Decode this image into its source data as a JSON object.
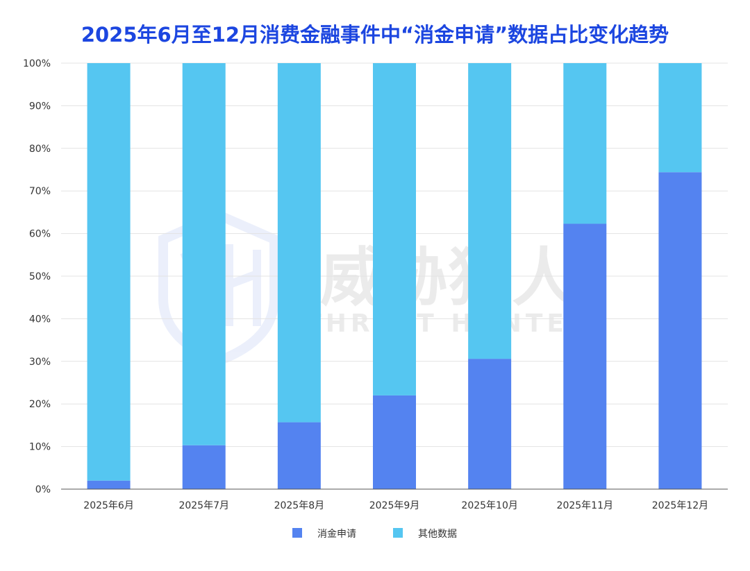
{
  "chart_data": {
    "type": "bar",
    "stacked": true,
    "percent": true,
    "title": "2025年6月至12月消费金融事件中“消金申请”数据占比变化趋势",
    "categories": [
      "2025年6月",
      "2025年7月",
      "2025年8月",
      "2025年9月",
      "2025年10月",
      "2025年11月",
      "2025年12月"
    ],
    "series": [
      {
        "name": "消金申请",
        "color": "#5483f0",
        "values": [
          2,
          10.3,
          15.7,
          22,
          30.6,
          62.3,
          74.4
        ]
      },
      {
        "name": "其他数据",
        "color": "#55c6f1",
        "values": [
          98,
          89.7,
          84.3,
          78,
          69.4,
          37.7,
          25.6
        ]
      }
    ],
    "y_ticks": [
      "0%",
      "10%",
      "20%",
      "30%",
      "40%",
      "50%",
      "60%",
      "70%",
      "80%",
      "90%",
      "100%"
    ],
    "ylim": [
      0,
      100
    ],
    "grid": true,
    "legend_position": "bottom-center"
  },
  "watermark": {
    "cn_text": "威胁猎人",
    "en_text": "THREAT HUNTER",
    "logo_icon": "shield-th-logo-icon"
  }
}
